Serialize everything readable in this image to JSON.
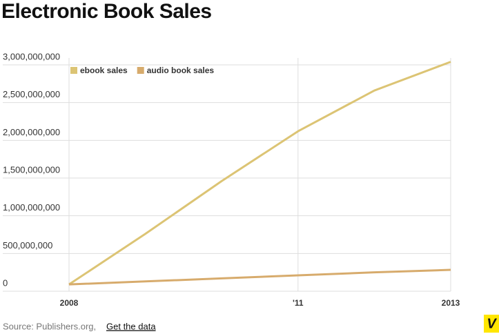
{
  "chart_data": {
    "type": "line",
    "title": "Electronic Book Sales",
    "x": [
      2008,
      2009,
      2010,
      2011,
      2012,
      2013
    ],
    "series": [
      {
        "name": "ebook sales",
        "color": "#dcc474",
        "values": [
          90000000,
          760000000,
          1460000000,
          2120000000,
          2660000000,
          3040000000
        ]
      },
      {
        "name": "audio book sales",
        "color": "#d7ab6c",
        "values": [
          90000000,
          130000000,
          170000000,
          210000000,
          250000000,
          283000000
        ]
      }
    ],
    "xlim": [
      2008,
      2013
    ],
    "xticks": [
      2008,
      {
        "value": 2011,
        "label": "'11"
      },
      2013
    ],
    "ylim": [
      0,
      3000000000
    ],
    "yticks": [
      0,
      {
        "value": 500000000,
        "label": "500,000,000"
      },
      {
        "value": 1000000000,
        "label": "1,000,000,000"
      },
      {
        "value": 1500000000,
        "label": "1,500,000,000"
      },
      {
        "value": 2000000000,
        "label": "2,000,000,000"
      },
      {
        "value": 2500000000,
        "label": "2,500,000,000"
      },
      {
        "value": 3000000000,
        "label": "3,000,000,000"
      }
    ],
    "grid": true,
    "legend": "top-left",
    "source": "Source: Publishers.org,",
    "source_link": "Get the data",
    "logo": "V"
  }
}
